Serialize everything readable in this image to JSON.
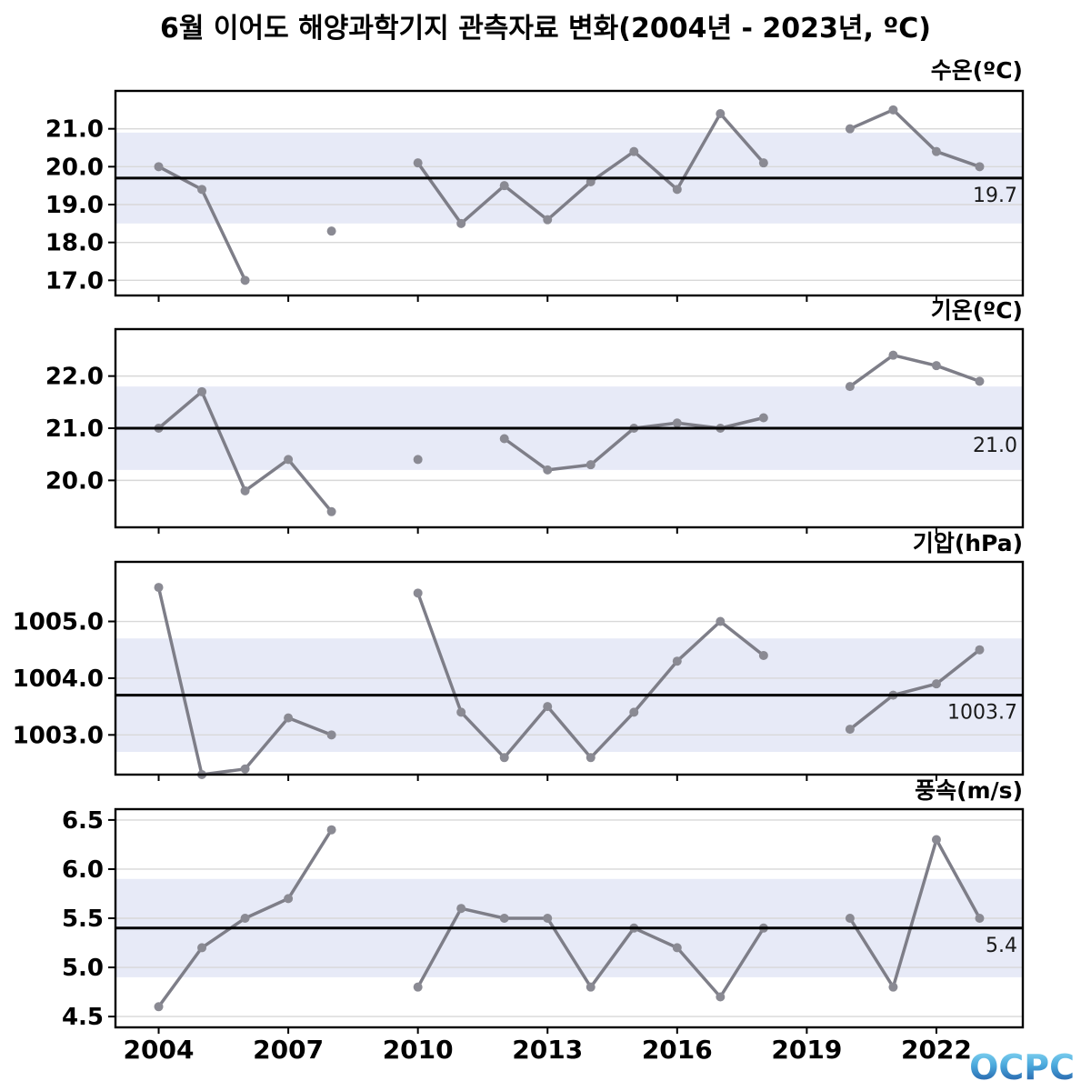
{
  "title": "6월 이어도 해양과학기지 관측자료 변화(2004년 - 2023년, ºC)",
  "logo": {
    "text": "OCPC"
  },
  "x_axis": {
    "tick_years": [
      2004,
      2007,
      2010,
      2013,
      2016,
      2019,
      2022
    ],
    "year_start": 2004,
    "year_end": 2023
  },
  "colors": {
    "line": "#7e7e88",
    "marker": "#8a8a93",
    "band": "#e7eaf7",
    "grid": "#d8d8d8",
    "mean_line": "#000000",
    "frame": "#000000",
    "text": "#000000",
    "annotation": "#1a1a1a"
  },
  "chart_data": [
    {
      "type": "line",
      "id": "water-temp",
      "label": "수온(ºC)",
      "x": [
        2004,
        2005,
        2006,
        2007,
        2008,
        2009,
        2010,
        2011,
        2012,
        2013,
        2014,
        2015,
        2016,
        2017,
        2018,
        2019,
        2020,
        2021,
        2022,
        2023
      ],
      "values": [
        20.0,
        19.4,
        17.0,
        null,
        18.3,
        null,
        20.1,
        18.5,
        19.5,
        18.6,
        19.6,
        20.4,
        19.4,
        21.4,
        20.1,
        null,
        21.0,
        21.5,
        20.4,
        20.0
      ],
      "mean": 19.7,
      "mean_label": "19.7",
      "band": [
        18.5,
        20.9
      ],
      "yticks": [
        21.0,
        20.0,
        19.0,
        18.0,
        17.0
      ],
      "ytick_labels": [
        "21.0",
        "20.0",
        "19.0",
        "18.0",
        "17.0"
      ],
      "ylim": [
        16.6,
        22.0
      ],
      "grid": true
    },
    {
      "type": "line",
      "id": "air-temp",
      "label": "기온(ºC)",
      "x": [
        2004,
        2005,
        2006,
        2007,
        2008,
        2009,
        2010,
        2011,
        2012,
        2013,
        2014,
        2015,
        2016,
        2017,
        2018,
        2019,
        2020,
        2021,
        2022,
        2023
      ],
      "values": [
        21.0,
        21.7,
        19.8,
        20.4,
        19.4,
        null,
        20.4,
        null,
        20.8,
        20.2,
        20.3,
        21.0,
        21.1,
        21.0,
        21.2,
        null,
        21.8,
        22.4,
        22.2,
        21.9
      ],
      "mean": 21.0,
      "mean_label": "21.0",
      "band": [
        20.2,
        21.8
      ],
      "yticks": [
        22.0,
        21.0,
        20.0
      ],
      "ytick_labels": [
        "22.0",
        "21.0",
        "20.0"
      ],
      "ylim": [
        19.1,
        22.9
      ],
      "grid": true
    },
    {
      "type": "line",
      "id": "pressure",
      "label": "기압(hPa)",
      "x": [
        2004,
        2005,
        2006,
        2007,
        2008,
        2009,
        2010,
        2011,
        2012,
        2013,
        2014,
        2015,
        2016,
        2017,
        2018,
        2019,
        2020,
        2021,
        2022,
        2023
      ],
      "values": [
        1005.6,
        1002.3,
        1002.4,
        1003.3,
        1003.0,
        null,
        1005.5,
        1003.4,
        1002.6,
        1003.5,
        1002.6,
        1003.4,
        1004.3,
        1005.0,
        1004.4,
        null,
        1003.1,
        1003.7,
        1003.9,
        1004.5
      ],
      "mean": 1003.7,
      "mean_label": "1003.7",
      "band": [
        1002.7,
        1004.7
      ],
      "yticks": [
        1005.0,
        1004.0,
        1003.0
      ],
      "ytick_labels": [
        "1005.0",
        "1004.0",
        "1003.0"
      ],
      "ylim": [
        1002.3,
        1006.05
      ],
      "grid": true
    },
    {
      "type": "line",
      "id": "wind-speed",
      "label": "풍속(m/s)",
      "x": [
        2004,
        2005,
        2006,
        2007,
        2008,
        2009,
        2010,
        2011,
        2012,
        2013,
        2014,
        2015,
        2016,
        2017,
        2018,
        2019,
        2020,
        2021,
        2022,
        2023
      ],
      "values": [
        4.6,
        5.2,
        5.5,
        5.7,
        6.4,
        null,
        4.8,
        5.6,
        5.5,
        5.5,
        4.8,
        5.4,
        5.2,
        4.7,
        5.4,
        null,
        5.5,
        4.8,
        6.3,
        5.5
      ],
      "mean": 5.4,
      "mean_label": "5.4",
      "band": [
        4.9,
        5.9
      ],
      "yticks": [
        6.5,
        6.0,
        5.5,
        5.0,
        4.5
      ],
      "ytick_labels": [
        "6.5",
        "6.0",
        "5.5",
        "5.0",
        "4.5"
      ],
      "ylim": [
        4.39,
        6.61
      ],
      "grid": true
    }
  ]
}
